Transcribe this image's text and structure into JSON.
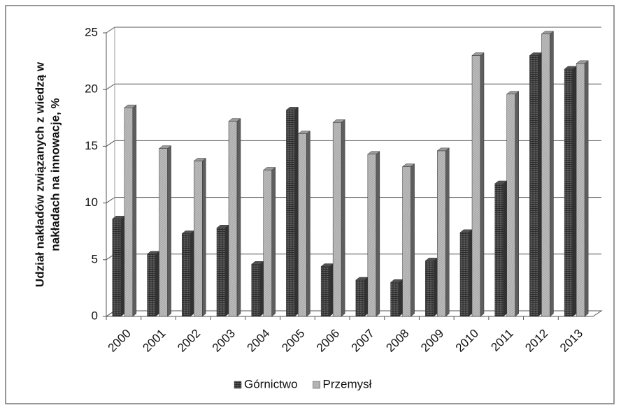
{
  "chart_data": {
    "type": "bar3d",
    "ylabel": [
      "Udział nakładów związanych z wiedzą w",
      "nakładach na innowacje,  %"
    ],
    "categories": [
      "2000",
      "2001",
      "2002",
      "2003",
      "2004",
      "2005",
      "2006",
      "2007",
      "2008",
      "2009",
      "2010",
      "2011",
      "2012",
      "2013"
    ],
    "series": [
      {
        "name": "Górnictwo",
        "color": "#5a5a5a",
        "values": [
          8.6,
          5.5,
          7.3,
          7.8,
          4.6,
          18.2,
          4.4,
          3.2,
          3.0,
          4.9,
          7.4,
          11.7,
          23.0,
          21.8
        ]
      },
      {
        "name": "Przemysł",
        "color": "#ababab",
        "values": [
          18.4,
          14.8,
          13.7,
          17.2,
          12.9,
          16.1,
          17.1,
          14.3,
          13.2,
          14.6,
          23.0,
          19.6,
          24.9,
          22.3
        ]
      }
    ],
    "ylim": [
      0,
      25
    ],
    "yticks": [
      0,
      5,
      10,
      15,
      20,
      25
    ],
    "grid": true,
    "legend": "bottom"
  }
}
